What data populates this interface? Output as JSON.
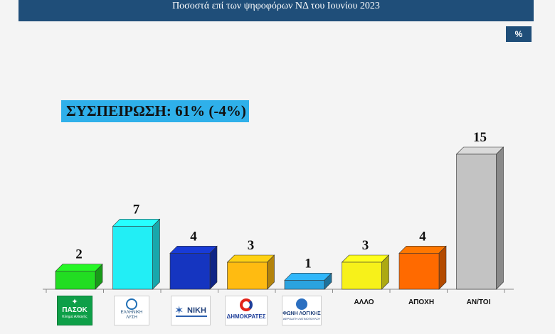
{
  "header": {
    "title": "Ποσοστά επί των ψηφοφόρων ΝΔ  του Ιουνίου 2023"
  },
  "unit_badge": "%",
  "retention_label": "ΣΥΣΠΕΙΡΩΣΗ: 61% (-4%)",
  "logos": {
    "pasok": {
      "line1": "ΠΑΣΟΚ",
      "line2": "Κίνημα Αλλαγής"
    },
    "elliniki_lysi": {
      "line1": "ΕΛΛΗΝΙΚΗ",
      "line2": "ΛΥΣΗ"
    },
    "niki": {
      "text": "ΝΙΚΗ"
    },
    "dimokrates": {
      "text": "ΔΗΜΟΚΡΑΤΕΣ"
    },
    "foni_logikis": {
      "line1": "ΦΩΝΗ ΛΟΓΙΚΗΣ",
      "line2": "ΑΦΡΟΔΙΤΗ ΛΑΤΙΝΟΠΟΥΛΟΥ"
    }
  },
  "chart_data": {
    "type": "bar",
    "title": "Ποσοστά επί των ψηφοφόρων ΝΔ  του Ιουνίου 2023",
    "categories": [
      "",
      "",
      "",
      "",
      "",
      "ΑΛΛΟ",
      "ΑΠΟΧΗ",
      "ΑΝ/ΤΟΙ"
    ],
    "values": [
      2,
      7,
      4,
      3,
      1,
      3,
      4,
      15
    ],
    "colors": [
      "#22dd22",
      "#22eef5",
      "#1535c0",
      "#ffbb11",
      "#2ba3df",
      "#f7f11a",
      "#ff6a00",
      "#c3c3c3"
    ],
    "ylim": [
      0,
      15
    ],
    "grid": false,
    "legend": "none"
  }
}
